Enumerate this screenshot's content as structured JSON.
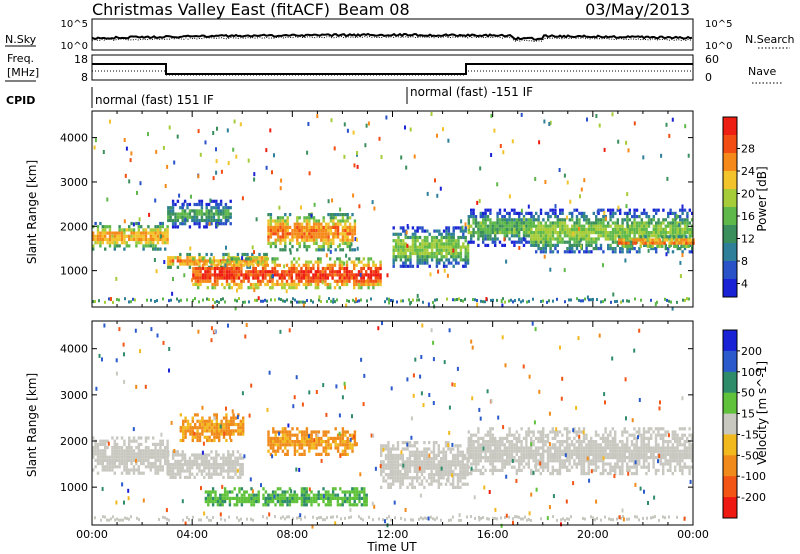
{
  "header": {
    "title": "Christmas Valley East (fitACF)",
    "beam": "Beam 08",
    "date": "03/May/2013"
  },
  "top_panels": {
    "nsky": {
      "label": "N.Sky",
      "ticks": [
        "10^5",
        "10^0"
      ]
    },
    "nsearch": {
      "label": "N.Search",
      "ticks": [
        "10^5",
        "10^0"
      ]
    },
    "freq": {
      "label1": "Freq.",
      "label2": "[MHz]",
      "ticks": [
        "18",
        "8"
      ]
    },
    "nave": {
      "label": "Nave",
      "ticks": [
        "60",
        "0"
      ]
    },
    "cpid": {
      "label": "CPID",
      "mode1": "normal (fast) 151 IF",
      "mode2": "normal (fast) -151 IF"
    }
  },
  "colorbars": {
    "power": {
      "label": "Power [dB]",
      "ticks": [
        "28",
        "24",
        "20",
        "16",
        "12",
        "8",
        "4"
      ],
      "colors": [
        "#1a22d6",
        "#2a52c8",
        "#2e7f9a",
        "#3a8f5c",
        "#5fb84a",
        "#a6cc3a",
        "#f2c32a",
        "#f58a1a",
        "#f24e14",
        "#ee1e12"
      ]
    },
    "velocity": {
      "label": "Velocity [m s^-1]",
      "ticks": [
        "200",
        "100",
        "50",
        "15",
        "-15",
        "-50",
        "-100",
        "-200"
      ],
      "colors": [
        "#1a22d6",
        "#2a5acb",
        "#2f8c6a",
        "#5fc23a",
        "#c8c8c0",
        "#f2b91e",
        "#f08a1a",
        "#f25514",
        "#ee1a12"
      ]
    }
  },
  "axes": {
    "ylabel": "Slant Range [km]",
    "yticks": [
      "4000",
      "3000",
      "2000",
      "1000"
    ],
    "xlabel": "Time UT",
    "xticks": [
      "00:00",
      "04:00",
      "08:00",
      "12:00",
      "16:00",
      "20:00",
      "00:00"
    ]
  },
  "chart_data": [
    {
      "type": "heatmap",
      "title": "Power",
      "xlabel": "Time UT",
      "ylabel": "Slant Range [km]",
      "xlim": [
        0,
        24
      ],
      "ylim": [
        180,
        4600
      ],
      "colorbar_label": "Power [dB]",
      "color_ticks": [
        4,
        8,
        12,
        16,
        20,
        24,
        28
      ],
      "bands": [
        {
          "t": [
            0,
            3
          ],
          "r": [
            1500,
            2100
          ],
          "value": 22
        },
        {
          "t": [
            3,
            5.5
          ],
          "r": [
            2000,
            2600
          ],
          "value": 12
        },
        {
          "t": [
            3,
            7
          ],
          "r": [
            1100,
            1400
          ],
          "value": 24
        },
        {
          "t": [
            4,
            11.5
          ],
          "r": [
            600,
            1300
          ],
          "value": 28
        },
        {
          "t": [
            7,
            10.5
          ],
          "r": [
            1500,
            2300
          ],
          "value": 24
        },
        {
          "t": [
            12,
            15
          ],
          "r": [
            1100,
            2000
          ],
          "value": 16
        },
        {
          "t": [
            15,
            17.5
          ],
          "r": [
            1600,
            2400
          ],
          "value": 14
        },
        {
          "t": [
            17.5,
            24
          ],
          "r": [
            1400,
            2400
          ],
          "value": 16
        },
        {
          "t": [
            21,
            24
          ],
          "r": [
            1550,
            1800
          ],
          "value": 24
        }
      ]
    },
    {
      "type": "heatmap",
      "title": "Velocity",
      "xlabel": "Time UT",
      "ylabel": "Slant Range [km]",
      "xlim": [
        0,
        24
      ],
      "ylim": [
        180,
        4600
      ],
      "colorbar_label": "Velocity [m s^-1]",
      "color_ticks": [
        -200,
        -100,
        -50,
        -15,
        15,
        50,
        100,
        200
      ],
      "bands": [
        {
          "t": [
            0,
            3
          ],
          "r": [
            1300,
            2100
          ],
          "value": 0
        },
        {
          "t": [
            3,
            6
          ],
          "r": [
            1200,
            1800
          ],
          "value": 0
        },
        {
          "t": [
            3.5,
            6
          ],
          "r": [
            2000,
            2600
          ],
          "value": -60
        },
        {
          "t": [
            4.5,
            11
          ],
          "r": [
            600,
            1000
          ],
          "value": 40
        },
        {
          "t": [
            7,
            10.5
          ],
          "r": [
            1700,
            2300
          ],
          "value": -60
        },
        {
          "t": [
            11.5,
            15
          ],
          "r": [
            1000,
            2000
          ],
          "value": 0
        },
        {
          "t": [
            15,
            24
          ],
          "r": [
            1300,
            2300
          ],
          "value": 0
        }
      ]
    }
  ]
}
